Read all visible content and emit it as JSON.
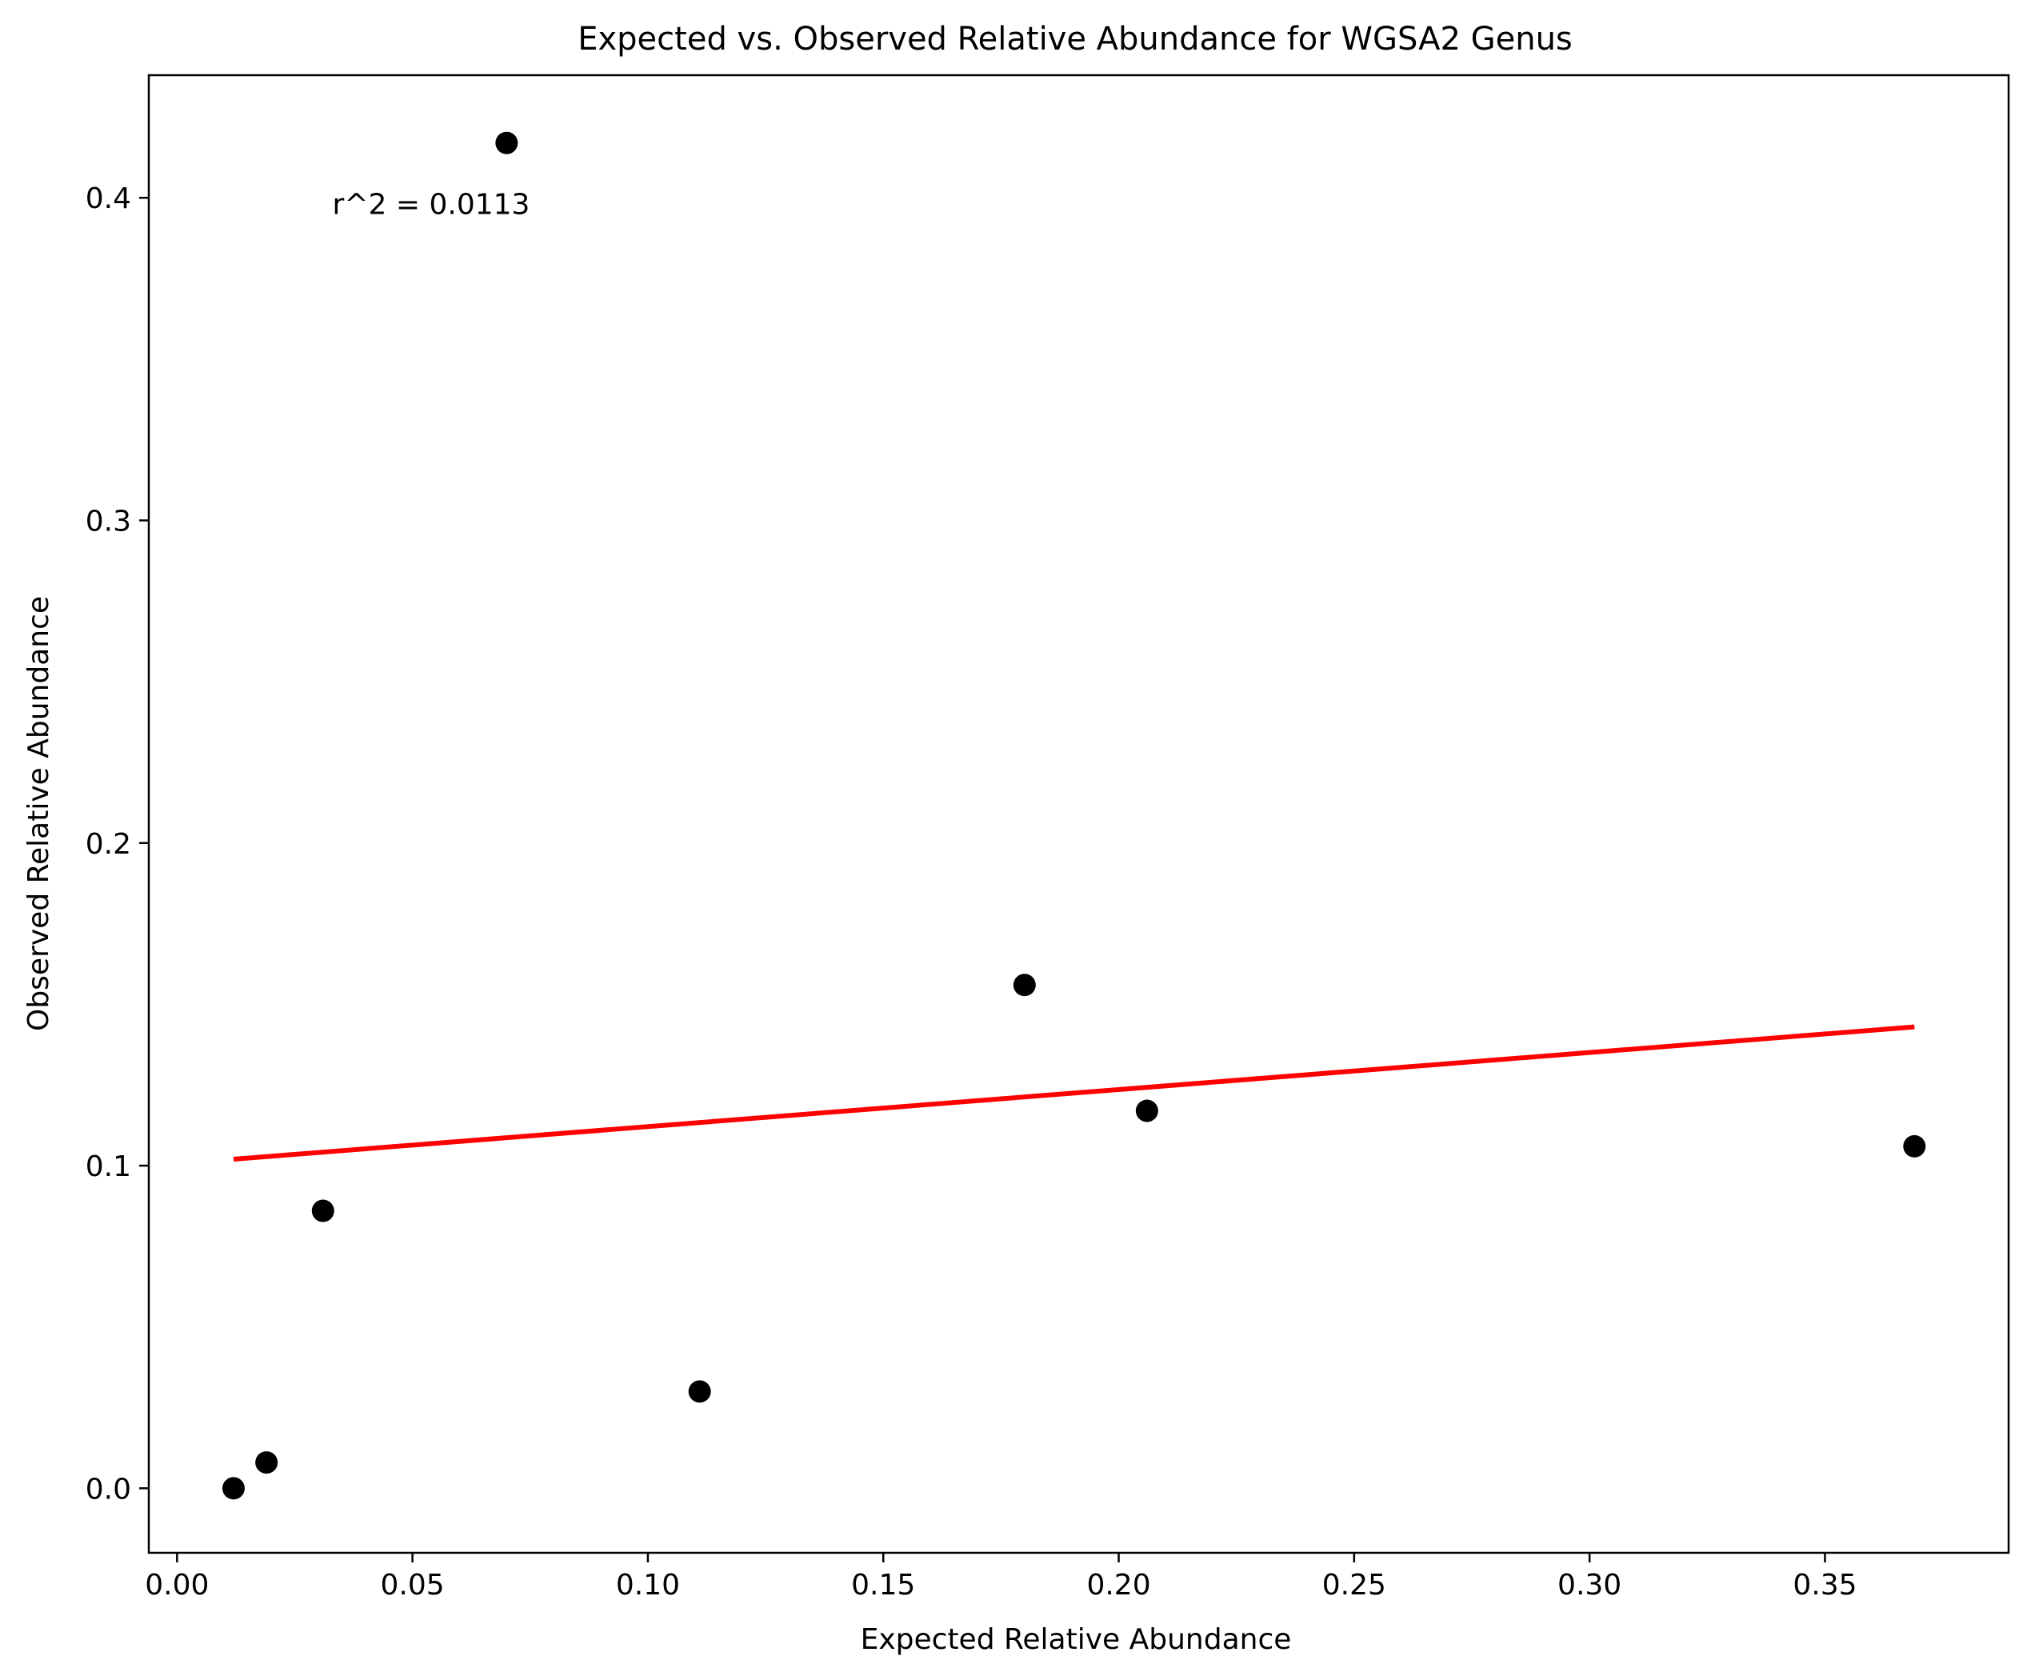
{
  "chart_data": {
    "type": "scatter",
    "title": "Expected vs. Observed Relative Abundance for WGSA2 Genus",
    "xlabel": "Expected Relative Abundance",
    "ylabel": "Observed Relative Abundance",
    "xlim": [
      -0.006,
      0.389
    ],
    "ylim": [
      -0.02,
      0.438
    ],
    "xticks": [
      0.0,
      0.05,
      0.1,
      0.15,
      0.2,
      0.25,
      0.3,
      0.35
    ],
    "xtick_labels": [
      "0.00",
      "0.05",
      "0.10",
      "0.15",
      "0.20",
      "0.25",
      "0.30",
      "0.35"
    ],
    "yticks": [
      0.0,
      0.1,
      0.2,
      0.3,
      0.4
    ],
    "ytick_labels": [
      "0.0",
      "0.1",
      "0.2",
      "0.3",
      "0.4"
    ],
    "grid": false,
    "points": [
      {
        "x": 0.012,
        "y": 0.0
      },
      {
        "x": 0.019,
        "y": 0.008
      },
      {
        "x": 0.031,
        "y": 0.086
      },
      {
        "x": 0.07,
        "y": 0.417
      },
      {
        "x": 0.111,
        "y": 0.03
      },
      {
        "x": 0.18,
        "y": 0.156
      },
      {
        "x": 0.206,
        "y": 0.117
      },
      {
        "x": 0.369,
        "y": 0.106
      }
    ],
    "point_color": "#000000",
    "fit_line": {
      "x": [
        0.012,
        0.369
      ],
      "y": [
        0.102,
        0.143
      ],
      "color": "#ff0000"
    },
    "annotation": {
      "text": "r^2 = 0.0113",
      "x": 0.033,
      "y": 0.395
    }
  }
}
